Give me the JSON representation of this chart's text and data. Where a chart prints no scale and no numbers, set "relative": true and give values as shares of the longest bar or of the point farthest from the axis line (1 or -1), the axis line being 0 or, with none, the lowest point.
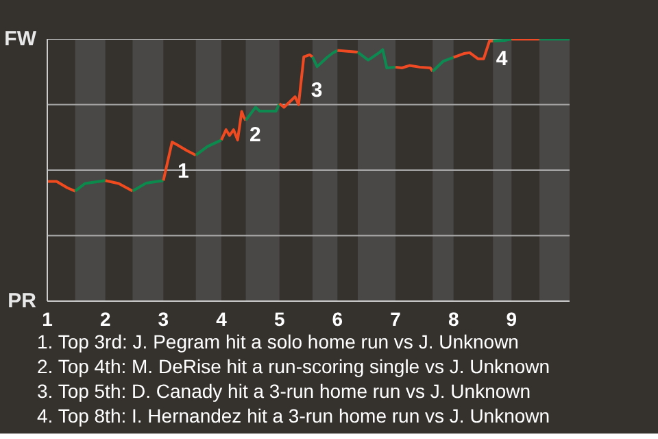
{
  "chart_data": {
    "type": "line",
    "relative": true,
    "xlim": [
      1,
      10
    ],
    "xticks": [
      1,
      2,
      3,
      4,
      5,
      6,
      7,
      8,
      9
    ],
    "marker": "none",
    "line_style": "solid",
    "series": [
      {
        "color": "#f04a1e",
        "x": [
          1,
          1.16,
          1.35,
          1.48
        ],
        "values": [
          0.457,
          0.457,
          0.432,
          0.42
        ]
      },
      {
        "color": "#0c8a4c",
        "x": [
          1.48,
          1.65,
          2
        ],
        "values": [
          0.42,
          0.449,
          0.46
        ]
      },
      {
        "color": "#f04a1f",
        "x": [
          2,
          2.23,
          2.47
        ],
        "values": [
          0.46,
          0.449,
          0.42
        ]
      },
      {
        "color": "#0c8a4d",
        "x": [
          2.47,
          2.7,
          3
        ],
        "values": [
          0.42,
          0.45,
          0.46
        ]
      },
      {
        "color": "#f04a20",
        "x": [
          3,
          3.15,
          3.21,
          3.41,
          3.56
        ],
        "values": [
          0.46,
          0.607,
          0.6,
          0.574,
          0.557
        ]
      },
      {
        "color": "#0c8a4e",
        "x": [
          3.56,
          3.76,
          4
        ],
        "values": [
          0.557,
          0.59,
          0.615
        ]
      },
      {
        "color": "#f04a21",
        "x": [
          4,
          4.08,
          4.14,
          4.21,
          4.28,
          4.35,
          4.38,
          4.42
        ],
        "values": [
          0.615,
          0.654,
          0.632,
          0.654,
          0.615,
          0.724,
          0.705,
          0.69
        ]
      },
      {
        "color": "#0c8a4f",
        "x": [
          4.42,
          4.59,
          4.66,
          4.94,
          5
        ],
        "values": [
          0.69,
          0.74,
          0.725,
          0.725,
          0.754
        ]
      },
      {
        "color": "#f04a22",
        "x": [
          5,
          5.08,
          5.2,
          5.27,
          5.33,
          5.42,
          5.52,
          5.57
        ],
        "values": [
          0.754,
          0.74,
          0.765,
          0.78,
          0.75,
          0.932,
          0.94,
          0.932
        ]
      },
      {
        "color": "#0c8a50",
        "x": [
          5.57,
          5.65,
          5.82,
          5.92,
          6
        ],
        "values": [
          0.932,
          0.895,
          0.93,
          0.947,
          0.957
        ]
      },
      {
        "color": "#f04a23",
        "x": [
          6,
          6.35
        ],
        "values": [
          0.957,
          0.95
        ]
      },
      {
        "color": "#0c8a51",
        "x": [
          6.35,
          6.53,
          6.73,
          6.78,
          6.85,
          7
        ],
        "values": [
          0.95,
          0.92,
          0.95,
          0.96,
          0.89,
          0.893
        ]
      },
      {
        "color": "#f04a24",
        "x": [
          7,
          7.11,
          7.24,
          7.42,
          7.6,
          7.64
        ],
        "values": [
          0.893,
          0.89,
          0.899,
          0.893,
          0.89,
          0.877
        ]
      },
      {
        "color": "#0c8a52",
        "x": [
          7.64,
          7.82,
          8
        ],
        "values": [
          0.877,
          0.915,
          0.93
        ]
      },
      {
        "color": "#f04a25",
        "x": [
          8,
          8.18,
          8.28,
          8.42,
          8.52,
          8.62,
          8.68
        ],
        "values": [
          0.93,
          0.945,
          0.948,
          0.925,
          0.925,
          0.993,
          0.993
        ]
      },
      {
        "color": "#0c8a53",
        "x": [
          8.68,
          8.88,
          9
        ],
        "values": [
          0.993,
          0.995,
          1
        ]
      },
      {
        "color": "#f04a26",
        "x": [
          9,
          9.48
        ],
        "values": [
          1,
          1
        ]
      },
      {
        "color": "#0c8a54",
        "x": [
          9.48,
          10
        ],
        "values": [
          1,
          1
        ]
      }
    ],
    "ref_lines": [
      {
        "axis": "y",
        "value": 0.25,
        "color": "#aaaaaa"
      },
      {
        "axis": "y",
        "value": 0.5,
        "color": "#aaaaaa"
      },
      {
        "axis": "y",
        "value": 0.75,
        "color": "#aaaaaa"
      },
      {
        "axis": "y",
        "value": 1,
        "color": "#aaaaaa"
      }
    ],
    "bands": [
      {
        "axis": "x",
        "from": 1.48,
        "to": 2,
        "color": "#4a4847"
      },
      {
        "axis": "x",
        "from": 2.47,
        "to": 3,
        "color": "#4a4847"
      },
      {
        "axis": "x",
        "from": 3.56,
        "to": 4,
        "color": "#4a4847"
      },
      {
        "axis": "x",
        "from": 4.42,
        "to": 5,
        "color": "#4a4847"
      },
      {
        "axis": "x",
        "from": 5.57,
        "to": 6,
        "color": "#4a4847"
      },
      {
        "axis": "x",
        "from": 6.35,
        "to": 7,
        "color": "#4a4847"
      },
      {
        "axis": "x",
        "from": 7.64,
        "to": 8,
        "color": "#4a4847"
      },
      {
        "axis": "x",
        "from": 8.68,
        "to": 9,
        "color": "#4a4847"
      },
      {
        "axis": "x",
        "from": 9.48,
        "to": 10,
        "color": "#4a4847"
      }
    ],
    "annotations": [
      "FW",
      "PR",
      {
        "text": "1",
        "x": 3.15,
        "y": 0.5
      },
      {
        "text": "2",
        "x": 4.39,
        "y": 0.64
      },
      {
        "text": "3",
        "x": 5.45,
        "y": 0.81
      },
      {
        "text": "4",
        "x": 8.64,
        "y": 0.93
      },
      "1. Top 3rd: J. Pegram hit a solo home run vs J. Unknown",
      "2. Top 4th: M. DeRise hit a run-scoring single vs J. Unknown",
      "3. Top 5th: D. Canady hit a 3-run home run vs J. Unknown",
      "4. Top 8th: I. Hernandez hit a 3-run home run vs J. Unknown"
    ]
  }
}
